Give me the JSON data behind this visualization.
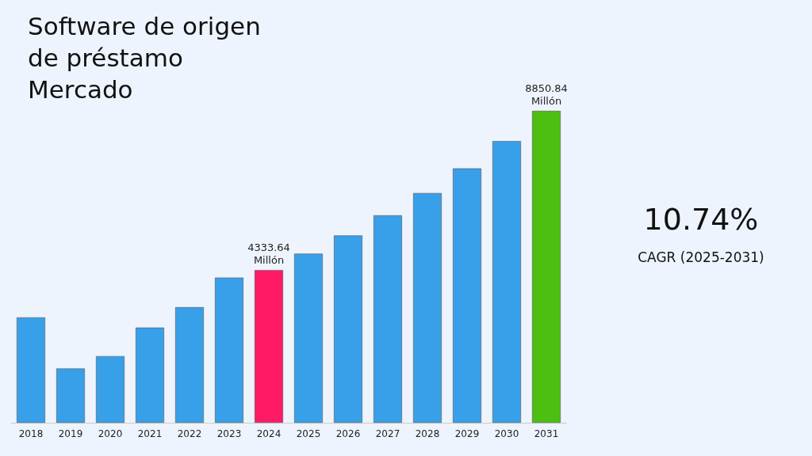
{
  "chart_data": {
    "type": "bar",
    "title": "Software de origen de préstamo Mercado",
    "categories": [
      "2018",
      "2019",
      "2020",
      "2021",
      "2022",
      "2023",
      "2024",
      "2025",
      "2026",
      "2027",
      "2028",
      "2029",
      "2030",
      "2031"
    ],
    "values": [
      2990,
      1540,
      1890,
      2700,
      3280,
      4120,
      4333.64,
      4799,
      5315,
      5886,
      6518,
      7218,
      7993,
      8850.84
    ],
    "colors": [
      "#38a0e8",
      "#38a0e8",
      "#38a0e8",
      "#38a0e8",
      "#38a0e8",
      "#38a0e8",
      "#ff1a66",
      "#38a0e8",
      "#38a0e8",
      "#38a0e8",
      "#38a0e8",
      "#38a0e8",
      "#38a0e8",
      "#4cbf10"
    ],
    "value_labels": [
      null,
      null,
      null,
      null,
      null,
      null,
      "4333.64\nMillón",
      null,
      null,
      null,
      null,
      null,
      null,
      "8850.84\nMillón"
    ],
    "annotations": [
      "10.74%",
      "CAGR (2025-2031)"
    ],
    "grid": false,
    "tick_labels": "x"
  }
}
